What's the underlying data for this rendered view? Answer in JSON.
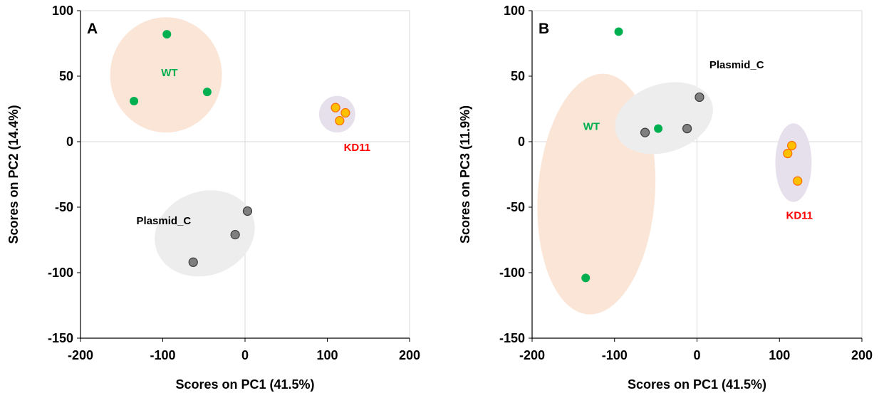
{
  "colors": {
    "WT": "#00b050",
    "Plasmid_C": "#7f7f7f",
    "KD11": "#ffc000",
    "KD11_label": "#ff0000",
    "WT_ellipse": "#fbe5d6",
    "Plasmid_C_ellipse": "#ededed",
    "KD11_ellipse": "#e6e0ec"
  },
  "chart_data": [
    {
      "type": "scatter",
      "panel_label": "A",
      "xlabel": "Scores on PC1 (41.5%)",
      "ylabel": "Scores on PC2 (14.4%)",
      "xlim": [
        -200,
        200
      ],
      "ylim": [
        -150,
        100
      ],
      "x_ticks": [
        -200,
        -100,
        0,
        100,
        200
      ],
      "y_ticks": [
        100,
        50,
        0,
        -50,
        -100,
        -150
      ],
      "series": [
        {
          "name": "WT",
          "points": [
            [
              -95,
              82
            ],
            [
              -135,
              31
            ],
            [
              -46,
              38
            ]
          ]
        },
        {
          "name": "Plasmid_C",
          "points": [
            [
              3,
              -53
            ],
            [
              -12,
              -71
            ],
            [
              -63,
              -92
            ]
          ]
        },
        {
          "name": "KD11",
          "points": [
            [
              110,
              26
            ],
            [
              122,
              22
            ],
            [
              115,
              16
            ]
          ]
        }
      ]
    },
    {
      "type": "scatter",
      "panel_label": "B",
      "xlabel": "Scores on PC1 (41.5%)",
      "ylabel": "Scores on PC3 (11.9%)",
      "xlim": [
        -200,
        200
      ],
      "ylim": [
        -150,
        100
      ],
      "x_ticks": [
        -200,
        -100,
        0,
        100,
        200
      ],
      "y_ticks": [
        100,
        50,
        0,
        -50,
        -100,
        -150
      ],
      "series": [
        {
          "name": "WT",
          "points": [
            [
              -95,
              84
            ],
            [
              -47,
              10
            ],
            [
              -135,
              -104
            ]
          ]
        },
        {
          "name": "Plasmid_C",
          "points": [
            [
              -63,
              7
            ],
            [
              -12,
              10
            ],
            [
              3,
              34
            ]
          ]
        },
        {
          "name": "KD11",
          "points": [
            [
              115,
              -3
            ],
            [
              110,
              -9
            ],
            [
              122,
              -30
            ]
          ]
        }
      ]
    }
  ]
}
